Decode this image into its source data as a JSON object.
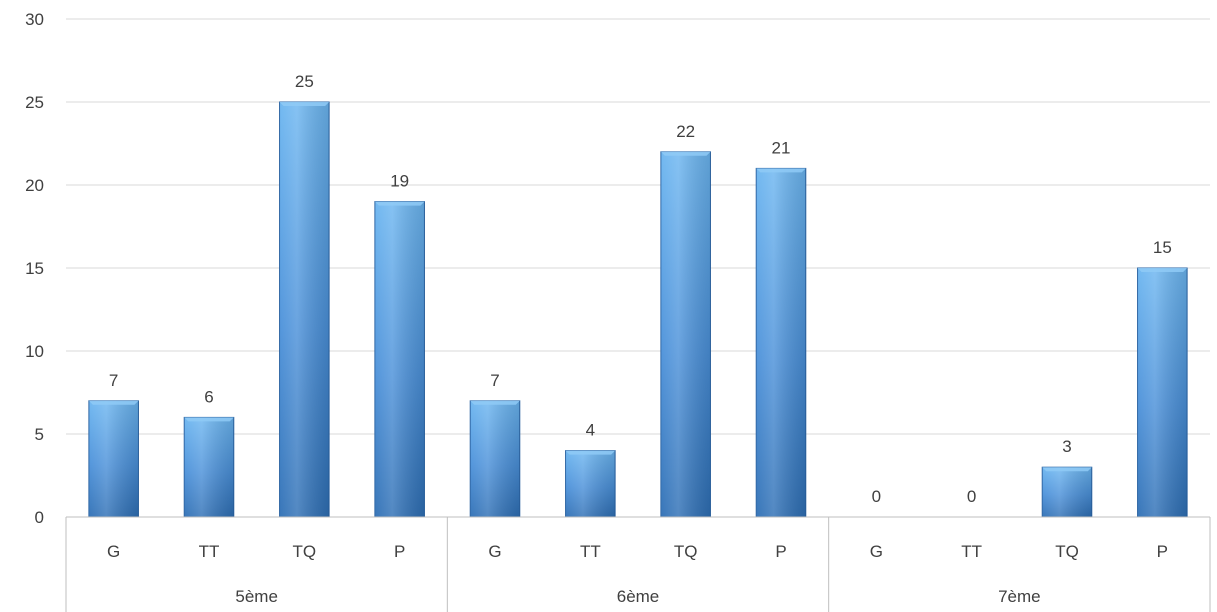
{
  "chart_data": {
    "type": "bar",
    "groups": [
      {
        "name": "5ème",
        "categories": [
          "G",
          "TT",
          "TQ",
          "P"
        ],
        "values": [
          7,
          6,
          25,
          19
        ]
      },
      {
        "name": "6ème",
        "categories": [
          "G",
          "TT",
          "TQ",
          "P"
        ],
        "values": [
          7,
          4,
          22,
          21
        ]
      },
      {
        "name": "7ème",
        "categories": [
          "G",
          "TT",
          "TQ",
          "P"
        ],
        "values": [
          0,
          0,
          3,
          15
        ]
      }
    ],
    "ylim": [
      0,
      30
    ],
    "yticks": [
      0,
      5,
      10,
      15,
      20,
      25,
      30
    ],
    "grid": true,
    "legend": "none",
    "data_labels": true,
    "colors": {
      "bar_top": "#6bb5f0",
      "bar_bottom": "#2e6fb5",
      "bar_edge": "#2a63a3"
    }
  }
}
